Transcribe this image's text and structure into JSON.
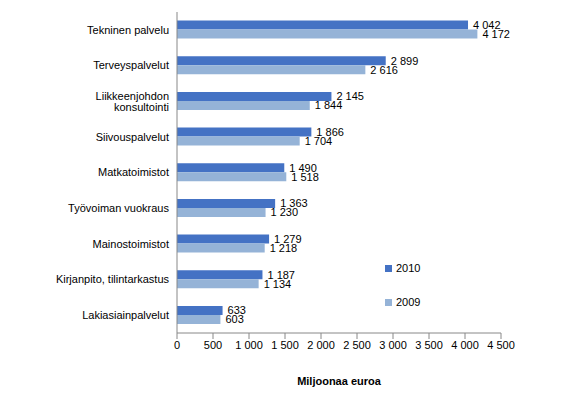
{
  "chart_data": {
    "type": "bar",
    "orientation": "horizontal",
    "x_label": "Miljoonaa euroa",
    "categories": [
      "Tekninen palvelu",
      "Terveyspalvelut",
      "Liikkeenjohdon konsultointi",
      "Siivouspalvelut",
      "Matkatoimistot",
      "Työvoiman vuokraus",
      "Mainostoimistot",
      "Kirjanpito, tilintarkastus",
      "Lakiasiainpalvelut"
    ],
    "series": [
      {
        "name": "2010",
        "color": "#4472c4",
        "values": [
          4042,
          2899,
          2145,
          1866,
          1490,
          1363,
          1279,
          1187,
          633
        ],
        "value_labels": [
          "4 042",
          "2 899",
          "2 145",
          "1 866",
          "1 490",
          "1 363",
          "1 279",
          "1 187",
          "633"
        ]
      },
      {
        "name": "2009",
        "color": "#95b3d7",
        "values": [
          4172,
          2616,
          1844,
          1704,
          1518,
          1230,
          1218,
          1134,
          603
        ],
        "value_labels": [
          "4 172",
          "2 616",
          "1 844",
          "1 704",
          "1 518",
          "1 230",
          "1 218",
          "1 134",
          "603"
        ]
      }
    ],
    "xlim": [
      0,
      4500
    ],
    "xticks": [
      0,
      500,
      {
        "value": 1000,
        "label": "1 000"
      },
      {
        "value": 1500,
        "label": "1 500"
      },
      {
        "value": 2000,
        "label": "2 000"
      },
      {
        "value": 2500,
        "label": "2 500"
      },
      {
        "value": 3000,
        "label": "3 000"
      },
      {
        "value": 3500,
        "label": "3 500"
      },
      {
        "value": 4000,
        "label": "4 000"
      },
      {
        "value": 4500,
        "label": "4 500"
      }
    ],
    "grid": false,
    "legend": "right",
    "data_labels": true
  }
}
